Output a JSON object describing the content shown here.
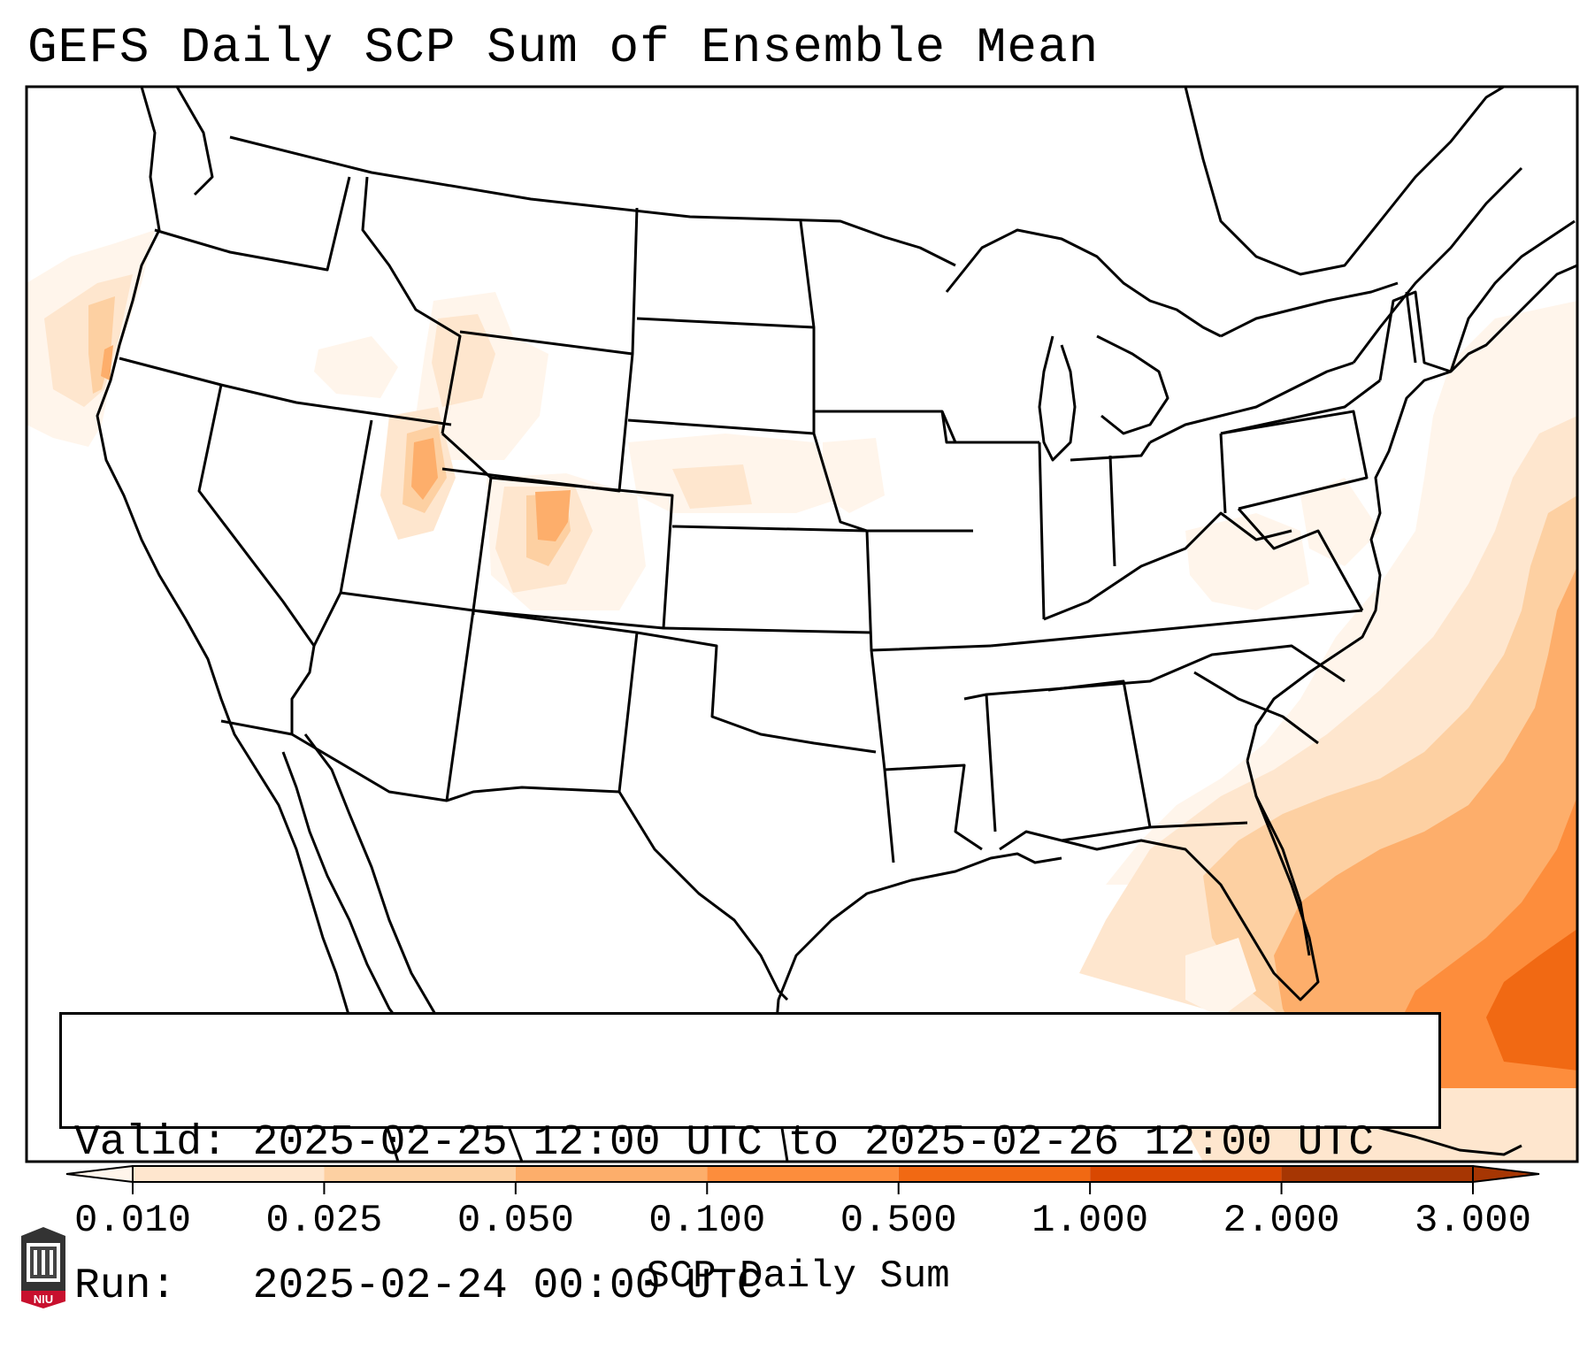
{
  "title": "GEFS Daily SCP Sum of Ensemble Mean",
  "valid_line": "Valid: 2025-02-25 12:00 UTC to 2025-02-26 12:00 UTC",
  "run_line": "Run:   2025-02-24 00:00 UTC",
  "colorbar": {
    "label": "SCP Daily Sum",
    "ticks": [
      "0.010",
      "0.025",
      "0.050",
      "0.100",
      "0.500",
      "1.000",
      "2.000",
      "3.000"
    ],
    "colors": [
      "#fff5eb",
      "#fee6ce",
      "#fdd0a2",
      "#fdae6b",
      "#fd8d3c",
      "#f16913",
      "#d94801",
      "#a63603"
    ],
    "extend": "both"
  },
  "logo": {
    "text": "NIU",
    "color": "#c8102e"
  },
  "colors": {
    "border": "#000000"
  }
}
